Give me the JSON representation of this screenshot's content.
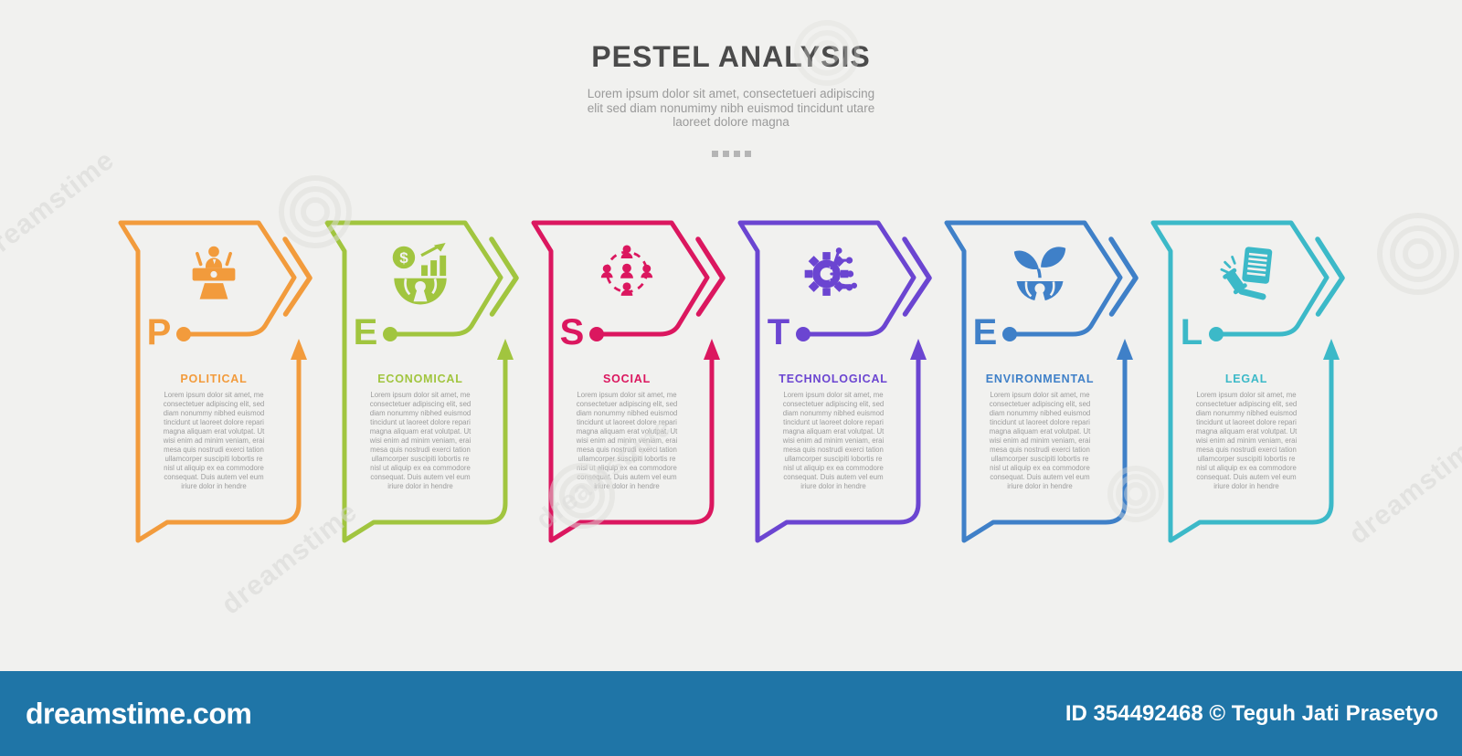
{
  "page": {
    "background": "#f1f1ef"
  },
  "header": {
    "title": "PESTEL ANALYSIS",
    "subtitle": "Lorem ipsum dolor sit amet, consectetueri adipiscing\nelit sed diam nonumimy nibh euismod tincidunt utare\nlaoreet dolore magna",
    "square_count": 4
  },
  "cards": [
    {
      "letter": "P",
      "label": "POLITICAL",
      "color": "#F29B3C",
      "icon": "podium-icon",
      "description": "Lorem ipsum dolor sit amet, me\nconsectetuer adipiscing elit, sed\ndiam nonummy nibhed euismod\ntincidunt ut laoreet dolore repari\nmagna aliquam erat volutpat. Ut\nwisi enim ad minim veniam, erai\nmesa quis nostrudi exerci tation\nullamcorper suscipiti lobortis  re\nnisl ut aliquip ex ea commodore\nconsequat. Duis autem vel eum\niriure dolor in hendre"
    },
    {
      "letter": "E",
      "label": "ECONOMICAL",
      "color": "#A1C53F",
      "icon": "economy-icon",
      "description": "Lorem ipsum dolor sit amet, me\nconsectetuer adipiscing elit, sed\ndiam nonummy nibhed euismod\ntincidunt ut laoreet dolore repari\nmagna aliquam erat volutpat. Ut\nwisi enim ad minim veniam, erai\nmesa quis nostrudi exerci tation\nullamcorper suscipiti lobortis  re\nnisl ut aliquip ex ea commodore\nconsequat. Duis autem vel eum\niriure dolor in hendre"
    },
    {
      "letter": "S",
      "label": "SOCIAL",
      "color": "#DB175F",
      "icon": "people-network-icon",
      "description": "Lorem ipsum dolor sit amet, me\nconsectetuer adipiscing elit, sed\ndiam nonummy nibhed euismod\ntincidunt ut laoreet dolore repari\nmagna aliquam erat volutpat. Ut\nwisi enim ad minim veniam, erai\nmesa quis nostrudi exerci tation\nullamcorper suscipiti lobortis  re\nnisl ut aliquip ex ea commodore\nconsequat. Duis autem vel eum\niriure dolor in hendre"
    },
    {
      "letter": "T",
      "label": "TECHNOLOGICAL",
      "color": "#6B45D1",
      "icon": "gear-circuit-icon",
      "description": "Lorem ipsum dolor sit amet, me\nconsectetuer adipiscing elit, sed\ndiam nonummy nibhed euismod\ntincidunt ut laoreet dolore repari\nmagna aliquam erat volutpat. Ut\nwisi enim ad minim veniam, erai\nmesa quis nostrudi exerci tation\nullamcorper suscipiti lobortis  re\nnisl ut aliquip ex ea commodore\nconsequat. Duis autem vel eum\niriure dolor in hendre"
    },
    {
      "letter": "E",
      "label": "ENVIRONMENTAL",
      "color": "#3F80C8",
      "icon": "plant-growth-icon",
      "description": "Lorem ipsum dolor sit amet, me\nconsectetuer adipiscing elit, sed\ndiam nonummy nibhed euismod\ntincidunt ut laoreet dolore repari\nmagna aliquam erat volutpat. Ut\nwisi enim ad minim veniam, erai\nmesa quis nostrudi exerci tation\nullamcorper suscipiti lobortis  re\nnisl ut aliquip ex ea commodore\nconsequat. Duis autem vel eum\niriure dolor in hendre"
    },
    {
      "letter": "L",
      "label": "LEGAL",
      "color": "#3CB9C8",
      "icon": "gavel-document-icon",
      "description": "Lorem ipsum dolor sit amet, me\nconsectetuer adipiscing elit, sed\ndiam nonummy nibhed euismod\ntincidunt ut laoreet dolore repari\nmagna aliquam erat volutpat. Ut\nwisi enim ad minim veniam, erai\nmesa quis nostrudi exerci tation\nullamcorper suscipiti lobortis  re\nnisl ut aliquip ex ea commodore\nconsequat. Duis autem vel eum\niriure dolor in hendre"
    }
  ],
  "layout": {
    "card_left_start": 129,
    "card_pitch": 226
  },
  "watermark": {
    "text": "dreamstime"
  },
  "footer": {
    "bar_color": "#1F75A7",
    "brand": "dreamstime.com",
    "credit": "ID 354492468 © Teguh Jati Prasetyo"
  }
}
